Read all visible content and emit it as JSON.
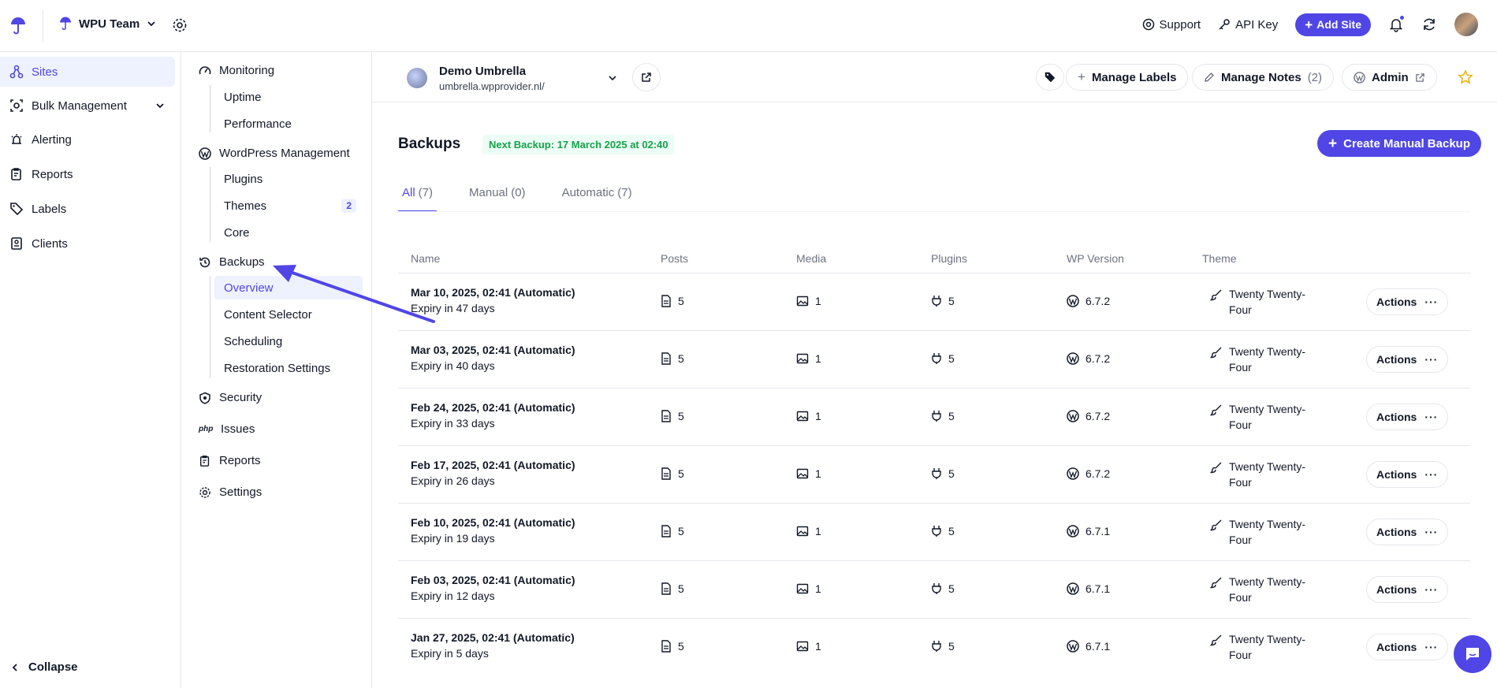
{
  "header": {
    "team_name": "WPU Team",
    "support_label": "Support",
    "api_key_label": "API Key",
    "add_site_label": "Add Site"
  },
  "sidebar": {
    "items": [
      {
        "label": "Sites",
        "icon": "sites-icon",
        "active": true
      },
      {
        "label": "Bulk Management",
        "icon": "bulk-icon"
      },
      {
        "label": "Alerting",
        "icon": "alert-icon"
      },
      {
        "label": "Reports",
        "icon": "reports-icon"
      },
      {
        "label": "Labels",
        "icon": "tag-icon"
      },
      {
        "label": "Clients",
        "icon": "clients-icon"
      }
    ],
    "collapse_label": "Collapse"
  },
  "subnav": {
    "monitoring": {
      "label": "Monitoring",
      "children": [
        "Uptime",
        "Performance"
      ]
    },
    "wordpress": {
      "label": "WordPress Management",
      "children": [
        "Plugins",
        "Themes",
        "Core"
      ],
      "themes_badge": "2"
    },
    "backups": {
      "label": "Backups",
      "children": [
        "Overview",
        "Content Selector",
        "Scheduling",
        "Restoration Settings"
      ]
    },
    "security": "Security",
    "issues": "Issues",
    "reports": "Reports",
    "settings": "Settings"
  },
  "site": {
    "name": "Demo Umbrella",
    "url": "umbrella.wpprovider.nl/",
    "manage_labels": "Manage Labels",
    "manage_notes": "Manage Notes",
    "notes_count": "(2)",
    "admin": "Admin"
  },
  "backups": {
    "title": "Backups",
    "next_backup": "Next Backup: 17 March 2025 at 02:40",
    "create_label": "Create Manual Backup",
    "tabs": [
      {
        "label": "All",
        "count": "(7)",
        "active": true
      },
      {
        "label": "Manual",
        "count": "(0)"
      },
      {
        "label": "Automatic",
        "count": "(7)"
      }
    ],
    "columns": {
      "name": "Name",
      "posts": "Posts",
      "media": "Media",
      "plugins": "Plugins",
      "wp_version": "WP Version",
      "theme": "Theme"
    },
    "actions_label": "Actions",
    "rows": [
      {
        "name": "Mar 10, 2025, 02:41 (Automatic)",
        "expiry": "Expiry in 47 days",
        "posts": "5",
        "media": "1",
        "plugins": "5",
        "wp": "6.7.2",
        "theme": "Twenty Twenty-Four"
      },
      {
        "name": "Mar 03, 2025, 02:41 (Automatic)",
        "expiry": "Expiry in 40 days",
        "posts": "5",
        "media": "1",
        "plugins": "5",
        "wp": "6.7.2",
        "theme": "Twenty Twenty-Four"
      },
      {
        "name": "Feb 24, 2025, 02:41 (Automatic)",
        "expiry": "Expiry in 33 days",
        "posts": "5",
        "media": "1",
        "plugins": "5",
        "wp": "6.7.2",
        "theme": "Twenty Twenty-Four"
      },
      {
        "name": "Feb 17, 2025, 02:41 (Automatic)",
        "expiry": "Expiry in 26 days",
        "posts": "5",
        "media": "1",
        "plugins": "5",
        "wp": "6.7.2",
        "theme": "Twenty Twenty-Four"
      },
      {
        "name": "Feb 10, 2025, 02:41 (Automatic)",
        "expiry": "Expiry in 19 days",
        "posts": "5",
        "media": "1",
        "plugins": "5",
        "wp": "6.7.1",
        "theme": "Twenty Twenty-Four"
      },
      {
        "name": "Feb 03, 2025, 02:41 (Automatic)",
        "expiry": "Expiry in 12 days",
        "posts": "5",
        "media": "1",
        "plugins": "5",
        "wp": "6.7.1",
        "theme": "Twenty Twenty-Four"
      },
      {
        "name": "Jan 27, 2025, 02:41 (Automatic)",
        "expiry": "Expiry in 5 days",
        "posts": "5",
        "media": "1",
        "plugins": "5",
        "wp": "6.7.1",
        "theme": "Twenty Twenty-Four"
      }
    ]
  },
  "colors": {
    "accent": "#4f46e5",
    "success": "#16a34a",
    "border": "#e5e7eb"
  }
}
